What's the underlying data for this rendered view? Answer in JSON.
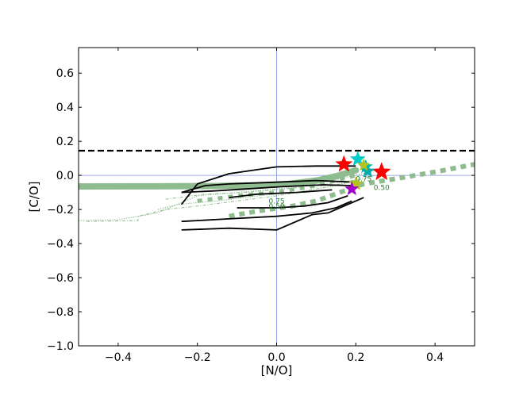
{
  "chart_data": {
    "type": "line",
    "xlabel": "[N/O]",
    "ylabel": "[C/O]",
    "xlim": [
      -0.5,
      0.5
    ],
    "ylim": [
      -1.0,
      0.75
    ],
    "xticks": [
      -0.4,
      -0.2,
      0.0,
      0.2,
      0.4
    ],
    "yticks": [
      -1.0,
      -0.8,
      -0.6,
      -0.4,
      -0.2,
      0.0,
      0.2,
      0.4,
      0.6
    ],
    "xtick_labels": [
      "−0.4",
      "−0.2",
      "0.0",
      "0.2",
      "0.4"
    ],
    "ytick_labels": [
      "−1.0",
      "−0.8",
      "−0.6",
      "−0.4",
      "−0.2",
      "0.0",
      "0.2",
      "0.4",
      "0.6"
    ],
    "grid": false,
    "reference_lines": {
      "vertical_x": 0.0,
      "horizontal_y": 0.0,
      "dashed_y": 0.145,
      "ref_color": "#7b8fe0",
      "dashed_color": "#000000"
    },
    "black_contours": [
      [
        [
          -0.24,
          -0.17
        ],
        [
          -0.2,
          -0.05
        ],
        [
          -0.12,
          0.01
        ],
        [
          0.0,
          0.05
        ],
        [
          0.1,
          0.055
        ],
        [
          0.2,
          0.055
        ]
      ],
      [
        [
          -0.24,
          -0.1
        ],
        [
          -0.15,
          -0.09
        ],
        [
          -0.08,
          -0.08
        ],
        [
          0.02,
          -0.065
        ],
        [
          0.12,
          -0.055
        ],
        [
          0.19,
          -0.06
        ]
      ],
      [
        [
          -0.24,
          -0.1
        ],
        [
          -0.18,
          -0.06
        ],
        [
          -0.12,
          -0.05
        ],
        [
          0.0,
          -0.04
        ],
        [
          0.1,
          -0.03
        ],
        [
          0.2,
          -0.04
        ]
      ],
      [
        [
          -0.1,
          -0.19
        ],
        [
          0.0,
          -0.19
        ],
        [
          0.07,
          -0.18
        ],
        [
          0.13,
          -0.16
        ],
        [
          0.18,
          -0.12
        ]
      ],
      [
        [
          -0.12,
          -0.13
        ],
        [
          -0.05,
          -0.11
        ],
        [
          0.05,
          -0.1
        ],
        [
          0.14,
          -0.085
        ]
      ],
      [
        [
          -0.24,
          -0.27
        ],
        [
          -0.12,
          -0.255
        ],
        [
          0.0,
          -0.24
        ],
        [
          0.09,
          -0.22
        ],
        [
          0.15,
          -0.19
        ],
        [
          0.19,
          -0.15
        ]
      ],
      [
        [
          -0.24,
          -0.32
        ],
        [
          -0.12,
          -0.31
        ],
        [
          0.0,
          -0.32
        ],
        [
          0.09,
          -0.23
        ],
        [
          0.13,
          -0.22
        ],
        [
          0.22,
          -0.13
        ]
      ]
    ],
    "green_thick_line": [
      [
        -0.5,
        -0.065
      ],
      [
        -0.3,
        -0.064
      ],
      [
        -0.15,
        -0.062
      ],
      [
        -0.05,
        -0.058
      ],
      [
        0.03,
        -0.05
      ],
      [
        0.1,
        -0.03
      ],
      [
        0.15,
        -0.005
      ],
      [
        0.2,
        0.03
      ]
    ],
    "green_dotted_thick": [
      [
        -0.12,
        -0.24
      ],
      [
        -0.05,
        -0.21
      ],
      [
        0.04,
        -0.18
      ],
      [
        0.1,
        -0.15
      ],
      [
        0.16,
        -0.1
      ],
      [
        0.22,
        -0.05
      ],
      [
        0.3,
        -0.02
      ],
      [
        0.4,
        0.02
      ],
      [
        0.5,
        0.065
      ]
    ],
    "green_dotted_thick_2": [
      [
        -0.2,
        -0.15
      ],
      [
        -0.1,
        -0.12
      ],
      [
        0.0,
        -0.1
      ],
      [
        0.1,
        -0.06
      ],
      [
        0.2,
        0.0
      ]
    ],
    "green_thin_curves": [
      [
        [
          -0.5,
          -0.265
        ],
        [
          -0.4,
          -0.26
        ],
        [
          -0.3,
          -0.22
        ],
        [
          -0.2,
          -0.12
        ],
        [
          -0.1,
          -0.1
        ],
        [
          0.0,
          -0.08
        ],
        [
          0.1,
          -0.05
        ],
        [
          0.2,
          0.0
        ],
        [
          0.25,
          0.03
        ]
      ],
      [
        [
          -0.48,
          -0.27
        ],
        [
          -0.35,
          -0.265
        ],
        [
          -0.35,
          -0.24
        ],
        [
          -0.28,
          -0.2
        ],
        [
          -0.2,
          -0.18
        ],
        [
          -0.1,
          -0.15
        ],
        [
          0.0,
          -0.12
        ],
        [
          0.1,
          -0.08
        ],
        [
          0.2,
          -0.03
        ]
      ],
      [
        [
          -0.3,
          -0.2
        ],
        [
          -0.25,
          -0.17
        ],
        [
          -0.15,
          -0.15
        ],
        [
          -0.05,
          -0.12
        ],
        [
          0.05,
          -0.1
        ],
        [
          0.15,
          -0.06
        ],
        [
          0.25,
          0.0
        ]
      ],
      [
        [
          -0.28,
          -0.14
        ],
        [
          -0.18,
          -0.11
        ],
        [
          -0.08,
          -0.1
        ],
        [
          0.02,
          -0.08
        ],
        [
          0.12,
          -0.05
        ],
        [
          0.22,
          -0.02
        ]
      ]
    ],
    "contour_labels": [
      {
        "text": "0.75",
        "x": -0.02,
        "y": -0.165
      },
      {
        "text": "0.50",
        "x": -0.02,
        "y": -0.195
      },
      {
        "text": "0.75",
        "x": 0.2,
        "y": -0.035
      },
      {
        "text": "0.50",
        "x": 0.245,
        "y": -0.085
      }
    ],
    "stars": [
      {
        "x": 0.17,
        "y": 0.065,
        "color": "#ff0000",
        "size": 22
      },
      {
        "x": 0.265,
        "y": 0.02,
        "color": "#ff0000",
        "size": 24
      },
      {
        "x": 0.205,
        "y": 0.095,
        "color": "#00cccc",
        "size": 20
      },
      {
        "x": 0.225,
        "y": 0.05,
        "color": "#00bbbb",
        "size": 18
      },
      {
        "x": 0.23,
        "y": 0.025,
        "color": "#00aaaa",
        "size": 18
      },
      {
        "x": 0.2,
        "y": -0.05,
        "color": "#b5c31a",
        "size": 18
      },
      {
        "x": 0.22,
        "y": 0.06,
        "color": "#b5c31a",
        "size": 16
      },
      {
        "x": 0.19,
        "y": -0.08,
        "color": "#a000c8",
        "size": 18
      }
    ]
  }
}
